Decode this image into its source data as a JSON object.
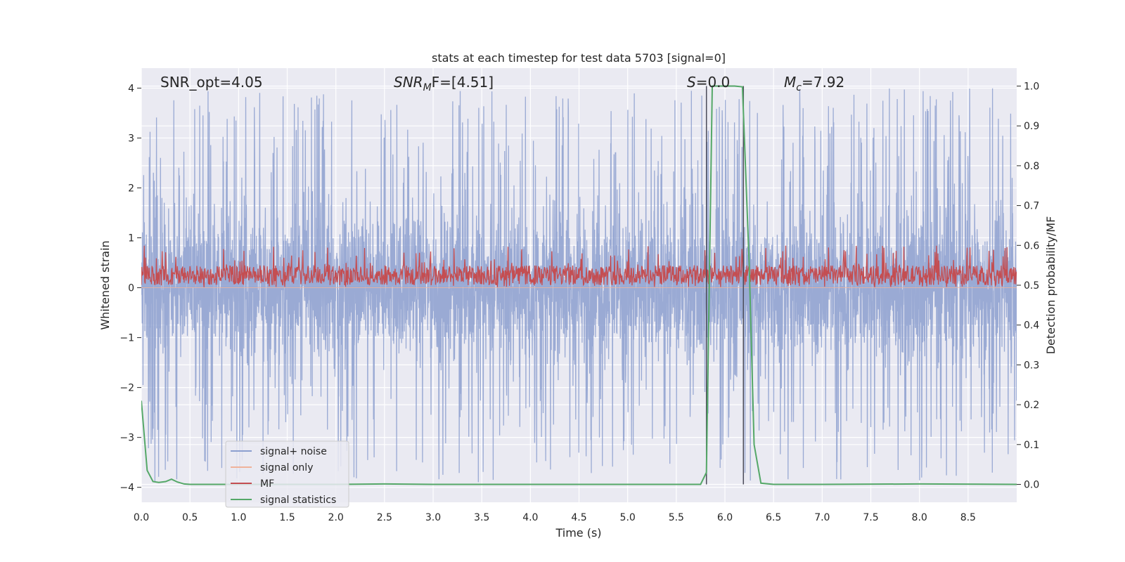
{
  "chart_data": {
    "type": "line",
    "title": "stats at each timestep for test data 5703 [signal=0]",
    "xlabel": "Time (s)",
    "ylabel": "Whitened strain",
    "y2label": "Detection probability/MF",
    "xlim": [
      0.0,
      9.0
    ],
    "ylim": [
      -4.3,
      4.4
    ],
    "y2lim": [
      -0.045,
      1.045
    ],
    "xticks": [
      "0.0",
      "0.5",
      "1.0",
      "1.5",
      "2.0",
      "2.5",
      "3.0",
      "3.5",
      "4.0",
      "4.5",
      "5.0",
      "5.5",
      "6.0",
      "6.5",
      "7.0",
      "7.5",
      "8.0",
      "8.5"
    ],
    "yticks": [
      "4",
      "3",
      "2",
      "1",
      "0",
      "−1",
      "−2",
      "−3",
      "−4"
    ],
    "y2ticks": [
      "1.0",
      "0.9",
      "0.8",
      "0.7",
      "0.6",
      "0.5",
      "0.4",
      "0.3",
      "0.2",
      "0.1",
      "0.0"
    ],
    "annotations": {
      "snr_opt": "SNR_opt=4.05",
      "snr_mf_main": "SNR",
      "snr_mf_sub": "M",
      "snr_mf_rest": "F=[4.51]",
      "s_main": "S",
      "s_rest": "=0.0",
      "mc_main": "M",
      "mc_sub": "c",
      "mc_rest": "=7.92"
    },
    "legend": {
      "placement": "lower-left",
      "entries": [
        {
          "label": "signal+ noise",
          "color": "#8c9fcf"
        },
        {
          "label": "signal only",
          "color": "#f0b29a"
        },
        {
          "label": "MF",
          "color": "#c44e52"
        },
        {
          "label": "signal statistics",
          "color": "#55a868"
        }
      ]
    },
    "vertical_markers": [
      5.81,
      6.19
    ],
    "noise_band": {
      "lower": -0.75,
      "upper": 0.85,
      "peak_min": -3.9,
      "peak_max": 4.0
    },
    "mf_band": {
      "lower": 0.5,
      "upper": 0.55,
      "peak_max": 0.6
    },
    "signal_statistics": {
      "x": [
        0.0,
        0.06,
        0.12,
        0.18,
        0.25,
        0.31,
        0.37,
        0.44,
        0.5,
        1.0,
        2.0,
        2.5,
        3.0,
        4.0,
        5.0,
        5.5,
        5.75,
        5.81,
        5.87,
        6.0,
        6.1,
        6.18,
        6.25,
        6.3,
        6.37,
        6.5,
        7.0,
        8.0,
        9.0
      ],
      "y": [
        0.21,
        0.035,
        0.007,
        0.005,
        0.007,
        0.013,
        0.006,
        0.001,
        0.0,
        0.0,
        0.0,
        0.001,
        0.0,
        0.0,
        0.0,
        0.0,
        0.0,
        0.03,
        1.0,
        1.0,
        1.0,
        0.998,
        0.55,
        0.1,
        0.003,
        0.0,
        0.0,
        0.001,
        0.0
      ]
    }
  }
}
